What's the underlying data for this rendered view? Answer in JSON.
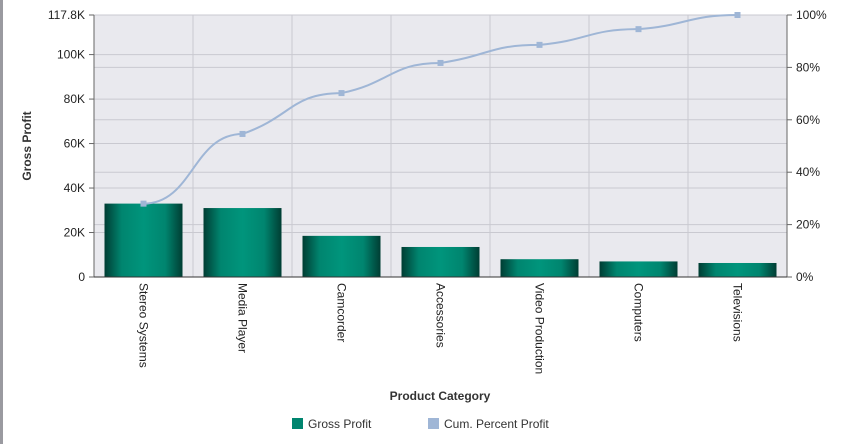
{
  "chart_data": {
    "type": "bar",
    "xlabel": "Product Category",
    "ylabel": "Gross Profit",
    "categories": [
      "Stereo Systems",
      "Media Player",
      "Camcorder",
      "Accessories",
      "Video Production",
      "Computers",
      "Televisions"
    ],
    "series": [
      {
        "name": "Gross Profit",
        "type": "bar",
        "axis": "left",
        "color": "#00856f",
        "values": [
          33000,
          31000,
          18500,
          13500,
          8000,
          7000,
          6300
        ]
      },
      {
        "name": "Cum. Percent Profit",
        "type": "line",
        "axis": "right",
        "color": "#9fb6d6",
        "values": [
          28,
          54.6,
          70.2,
          81.7,
          88.6,
          94.6,
          100
        ]
      }
    ],
    "y_left": {
      "ylim": [
        0,
        117800
      ],
      "ticks": [
        0,
        20000,
        40000,
        60000,
        80000,
        100000,
        117800
      ],
      "tick_labels": [
        "0",
        "20K",
        "40K",
        "60K",
        "80K",
        "100K",
        "117.8K"
      ]
    },
    "y_right": {
      "ylim": [
        0,
        100
      ],
      "ticks": [
        0,
        20,
        40,
        60,
        80,
        100
      ],
      "tick_labels": [
        "0%",
        "20%",
        "40%",
        "60%",
        "80%",
        "100%"
      ]
    },
    "grid": true,
    "legend": {
      "position": "bottom",
      "entries": [
        "Gross Profit",
        "Cum. Percent Profit"
      ]
    }
  }
}
